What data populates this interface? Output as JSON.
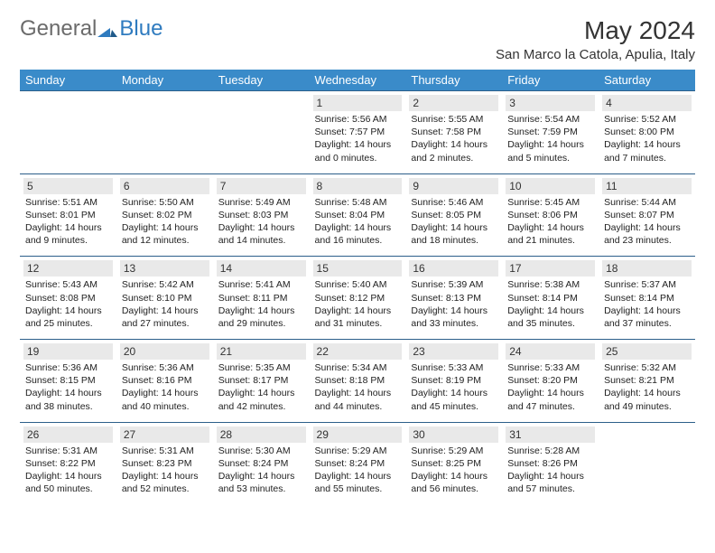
{
  "logo": {
    "part1": "General",
    "part2": "Blue"
  },
  "title": "May 2024",
  "location": "San Marco la Catola, Apulia, Italy",
  "colors": {
    "header_bg": "#3a8bc9",
    "header_text": "#ffffff",
    "row_divider": "#2c5f8a",
    "daynum_bg": "#e9e9e9",
    "logo_gray": "#6b6b6b",
    "logo_blue": "#2f7bbf",
    "body_text": "#222222",
    "page_bg": "#ffffff"
  },
  "weekdays": [
    "Sunday",
    "Monday",
    "Tuesday",
    "Wednesday",
    "Thursday",
    "Friday",
    "Saturday"
  ],
  "weeks": [
    [
      null,
      null,
      null,
      {
        "n": "1",
        "l1": "Sunrise: 5:56 AM",
        "l2": "Sunset: 7:57 PM",
        "l3": "Daylight: 14 hours",
        "l4": "and 0 minutes."
      },
      {
        "n": "2",
        "l1": "Sunrise: 5:55 AM",
        "l2": "Sunset: 7:58 PM",
        "l3": "Daylight: 14 hours",
        "l4": "and 2 minutes."
      },
      {
        "n": "3",
        "l1": "Sunrise: 5:54 AM",
        "l2": "Sunset: 7:59 PM",
        "l3": "Daylight: 14 hours",
        "l4": "and 5 minutes."
      },
      {
        "n": "4",
        "l1": "Sunrise: 5:52 AM",
        "l2": "Sunset: 8:00 PM",
        "l3": "Daylight: 14 hours",
        "l4": "and 7 minutes."
      }
    ],
    [
      {
        "n": "5",
        "l1": "Sunrise: 5:51 AM",
        "l2": "Sunset: 8:01 PM",
        "l3": "Daylight: 14 hours",
        "l4": "and 9 minutes."
      },
      {
        "n": "6",
        "l1": "Sunrise: 5:50 AM",
        "l2": "Sunset: 8:02 PM",
        "l3": "Daylight: 14 hours",
        "l4": "and 12 minutes."
      },
      {
        "n": "7",
        "l1": "Sunrise: 5:49 AM",
        "l2": "Sunset: 8:03 PM",
        "l3": "Daylight: 14 hours",
        "l4": "and 14 minutes."
      },
      {
        "n": "8",
        "l1": "Sunrise: 5:48 AM",
        "l2": "Sunset: 8:04 PM",
        "l3": "Daylight: 14 hours",
        "l4": "and 16 minutes."
      },
      {
        "n": "9",
        "l1": "Sunrise: 5:46 AM",
        "l2": "Sunset: 8:05 PM",
        "l3": "Daylight: 14 hours",
        "l4": "and 18 minutes."
      },
      {
        "n": "10",
        "l1": "Sunrise: 5:45 AM",
        "l2": "Sunset: 8:06 PM",
        "l3": "Daylight: 14 hours",
        "l4": "and 21 minutes."
      },
      {
        "n": "11",
        "l1": "Sunrise: 5:44 AM",
        "l2": "Sunset: 8:07 PM",
        "l3": "Daylight: 14 hours",
        "l4": "and 23 minutes."
      }
    ],
    [
      {
        "n": "12",
        "l1": "Sunrise: 5:43 AM",
        "l2": "Sunset: 8:08 PM",
        "l3": "Daylight: 14 hours",
        "l4": "and 25 minutes."
      },
      {
        "n": "13",
        "l1": "Sunrise: 5:42 AM",
        "l2": "Sunset: 8:10 PM",
        "l3": "Daylight: 14 hours",
        "l4": "and 27 minutes."
      },
      {
        "n": "14",
        "l1": "Sunrise: 5:41 AM",
        "l2": "Sunset: 8:11 PM",
        "l3": "Daylight: 14 hours",
        "l4": "and 29 minutes."
      },
      {
        "n": "15",
        "l1": "Sunrise: 5:40 AM",
        "l2": "Sunset: 8:12 PM",
        "l3": "Daylight: 14 hours",
        "l4": "and 31 minutes."
      },
      {
        "n": "16",
        "l1": "Sunrise: 5:39 AM",
        "l2": "Sunset: 8:13 PM",
        "l3": "Daylight: 14 hours",
        "l4": "and 33 minutes."
      },
      {
        "n": "17",
        "l1": "Sunrise: 5:38 AM",
        "l2": "Sunset: 8:14 PM",
        "l3": "Daylight: 14 hours",
        "l4": "and 35 minutes."
      },
      {
        "n": "18",
        "l1": "Sunrise: 5:37 AM",
        "l2": "Sunset: 8:14 PM",
        "l3": "Daylight: 14 hours",
        "l4": "and 37 minutes."
      }
    ],
    [
      {
        "n": "19",
        "l1": "Sunrise: 5:36 AM",
        "l2": "Sunset: 8:15 PM",
        "l3": "Daylight: 14 hours",
        "l4": "and 38 minutes."
      },
      {
        "n": "20",
        "l1": "Sunrise: 5:36 AM",
        "l2": "Sunset: 8:16 PM",
        "l3": "Daylight: 14 hours",
        "l4": "and 40 minutes."
      },
      {
        "n": "21",
        "l1": "Sunrise: 5:35 AM",
        "l2": "Sunset: 8:17 PM",
        "l3": "Daylight: 14 hours",
        "l4": "and 42 minutes."
      },
      {
        "n": "22",
        "l1": "Sunrise: 5:34 AM",
        "l2": "Sunset: 8:18 PM",
        "l3": "Daylight: 14 hours",
        "l4": "and 44 minutes."
      },
      {
        "n": "23",
        "l1": "Sunrise: 5:33 AM",
        "l2": "Sunset: 8:19 PM",
        "l3": "Daylight: 14 hours",
        "l4": "and 45 minutes."
      },
      {
        "n": "24",
        "l1": "Sunrise: 5:33 AM",
        "l2": "Sunset: 8:20 PM",
        "l3": "Daylight: 14 hours",
        "l4": "and 47 minutes."
      },
      {
        "n": "25",
        "l1": "Sunrise: 5:32 AM",
        "l2": "Sunset: 8:21 PM",
        "l3": "Daylight: 14 hours",
        "l4": "and 49 minutes."
      }
    ],
    [
      {
        "n": "26",
        "l1": "Sunrise: 5:31 AM",
        "l2": "Sunset: 8:22 PM",
        "l3": "Daylight: 14 hours",
        "l4": "and 50 minutes."
      },
      {
        "n": "27",
        "l1": "Sunrise: 5:31 AM",
        "l2": "Sunset: 8:23 PM",
        "l3": "Daylight: 14 hours",
        "l4": "and 52 minutes."
      },
      {
        "n": "28",
        "l1": "Sunrise: 5:30 AM",
        "l2": "Sunset: 8:24 PM",
        "l3": "Daylight: 14 hours",
        "l4": "and 53 minutes."
      },
      {
        "n": "29",
        "l1": "Sunrise: 5:29 AM",
        "l2": "Sunset: 8:24 PM",
        "l3": "Daylight: 14 hours",
        "l4": "and 55 minutes."
      },
      {
        "n": "30",
        "l1": "Sunrise: 5:29 AM",
        "l2": "Sunset: 8:25 PM",
        "l3": "Daylight: 14 hours",
        "l4": "and 56 minutes."
      },
      {
        "n": "31",
        "l1": "Sunrise: 5:28 AM",
        "l2": "Sunset: 8:26 PM",
        "l3": "Daylight: 14 hours",
        "l4": "and 57 minutes."
      },
      null
    ]
  ]
}
